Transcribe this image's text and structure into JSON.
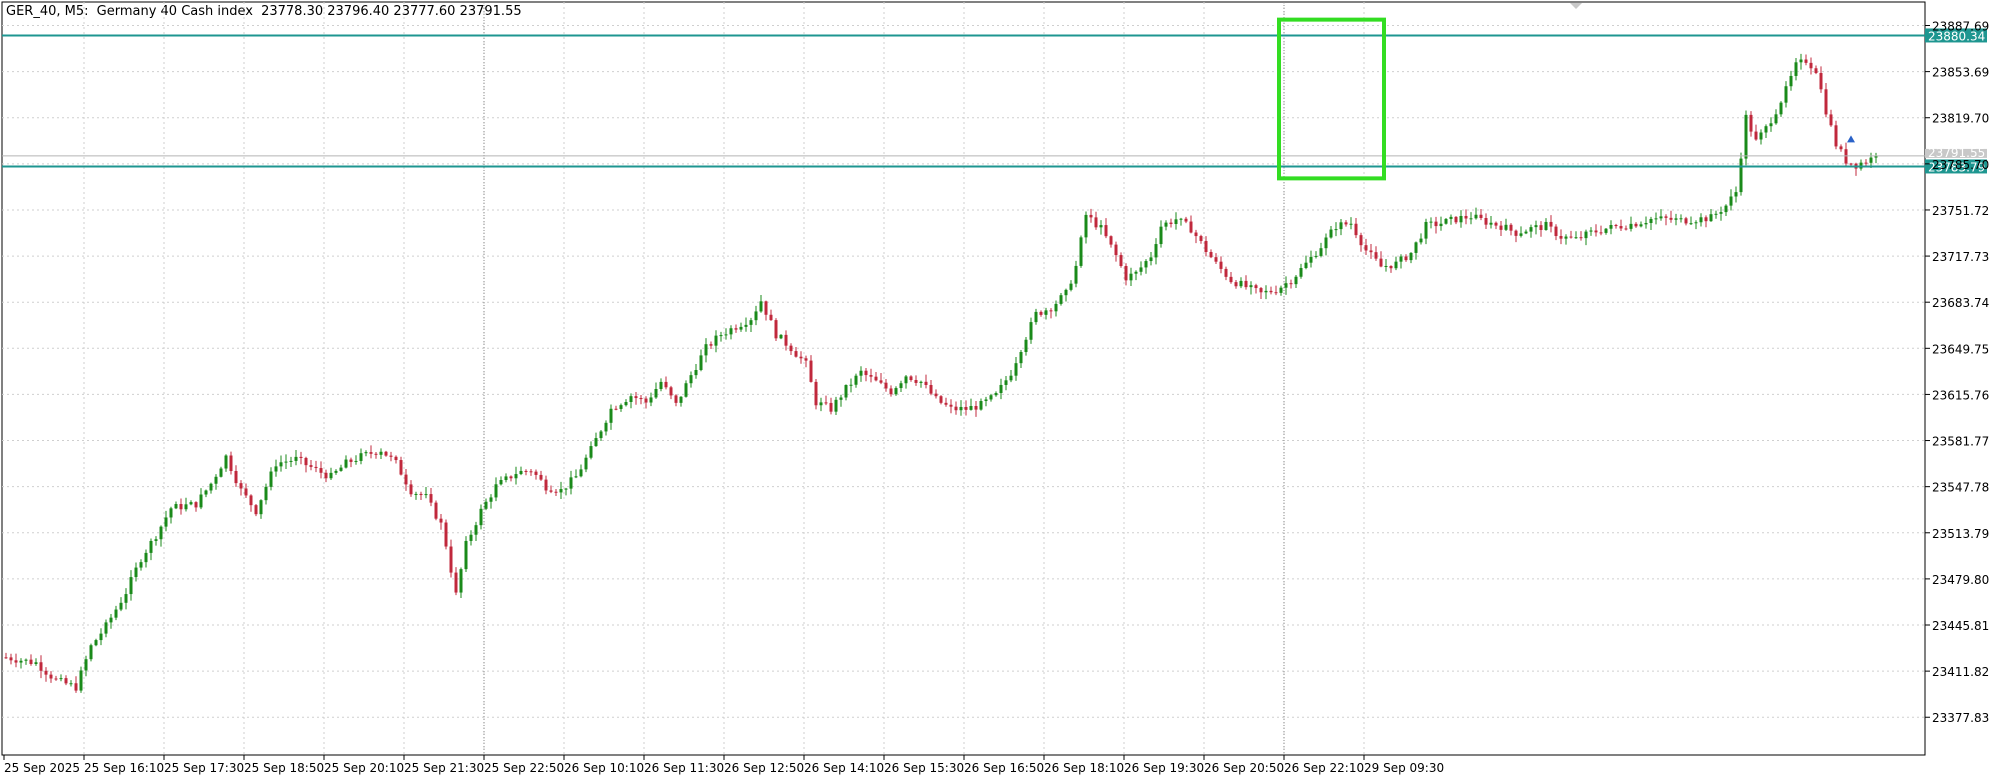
{
  "header": {
    "symbol": "GER_40, M5:",
    "instrument": "Germany 40 Cash index",
    "ohlc": "23778.30 23796.40 23777.60 23791.55"
  },
  "colors": {
    "bull": "#1a8a1a",
    "bear": "#c0283c",
    "level_line": "#1e9690",
    "highlight_box": "#33dd22",
    "grid": "#cfcfcf"
  },
  "chart_data": {
    "type": "candlestick",
    "ylim": [
      23350,
      23905
    ],
    "y_ticks": [
      23887.69,
      23853.69,
      23819.7,
      23785.7,
      23751.72,
      23717.73,
      23683.74,
      23649.75,
      23615.76,
      23581.77,
      23547.78,
      23513.79,
      23479.8,
      23445.81,
      23411.82,
      23377.83
    ],
    "y_tick_labels": [
      "23887.69",
      "23853.69",
      "23819.70",
      "23785.70",
      "23751.72",
      "23717.73",
      "23683.74",
      "23649.75",
      "23615.76",
      "23581.77",
      "23547.78",
      "23513.79",
      "23479.80",
      "23445.81",
      "23411.82",
      "23377.83"
    ],
    "x_tick_labels": [
      "25 Sep 2025",
      "25 Sep 16:10",
      "25 Sep 17:30",
      "25 Sep 18:50",
      "25 Sep 20:10",
      "25 Sep 21:30",
      "25 Sep 22:50",
      "26 Sep 10:10",
      "26 Sep 11:30",
      "26 Sep 12:50",
      "26 Sep 14:10",
      "26 Sep 15:30",
      "26 Sep 16:50",
      "26 Sep 18:10",
      "26 Sep 19:30",
      "26 Sep 20:50",
      "26 Sep 22:10",
      "29 Sep 09:30"
    ],
    "horizontal_levels": [
      {
        "value": 23880.34,
        "label": "23880.34"
      },
      {
        "value": 23783.79,
        "label": "23783.79"
      }
    ],
    "current_price": {
      "value": 23791.55,
      "label": "23791.55"
    },
    "highlight_box": {
      "x_from": "26 Sep 22:10",
      "x_to": "29 Sep 09:30",
      "y_range": [
        23775,
        23892
      ]
    },
    "price_path": [
      [
        0,
        23422
      ],
      [
        6,
        23418
      ],
      [
        10,
        23405
      ],
      [
        14,
        23400
      ],
      [
        17,
        23430
      ],
      [
        20,
        23445
      ],
      [
        24,
        23470
      ],
      [
        27,
        23495
      ],
      [
        30,
        23512
      ],
      [
        33,
        23532
      ],
      [
        38,
        23535
      ],
      [
        41,
        23550
      ],
      [
        44,
        23570
      ],
      [
        47,
        23545
      ],
      [
        50,
        23530
      ],
      [
        52,
        23548
      ],
      [
        54,
        23565
      ],
      [
        58,
        23568
      ],
      [
        62,
        23560
      ],
      [
        65,
        23555
      ],
      [
        68,
        23565
      ],
      [
        71,
        23570
      ],
      [
        75,
        23575
      ],
      [
        78,
        23565
      ],
      [
        81,
        23545
      ],
      [
        84,
        23540
      ],
      [
        87,
        23520
      ],
      [
        88,
        23505
      ],
      [
        90,
        23468
      ],
      [
        92,
        23505
      ],
      [
        95,
        23530
      ],
      [
        98,
        23548
      ],
      [
        102,
        23558
      ],
      [
        105,
        23560
      ],
      [
        108,
        23548
      ],
      [
        111,
        23545
      ],
      [
        114,
        23555
      ],
      [
        117,
        23575
      ],
      [
        121,
        23605
      ],
      [
        125,
        23615
      ],
      [
        128,
        23610
      ],
      [
        131,
        23625
      ],
      [
        134,
        23608
      ],
      [
        137,
        23630
      ],
      [
        140,
        23650
      ],
      [
        143,
        23660
      ],
      [
        146,
        23666
      ],
      [
        149,
        23672
      ],
      [
        151,
        23685
      ],
      [
        154,
        23660
      ],
      [
        157,
        23650
      ],
      [
        160,
        23638
      ],
      [
        162,
        23610
      ],
      [
        165,
        23605
      ],
      [
        168,
        23620
      ],
      [
        171,
        23632
      ],
      [
        174,
        23625
      ],
      [
        177,
        23618
      ],
      [
        180,
        23630
      ],
      [
        183,
        23625
      ],
      [
        186,
        23612
      ],
      [
        189,
        23605
      ],
      [
        192,
        23605
      ],
      [
        195,
        23608
      ],
      [
        198,
        23615
      ],
      [
        201,
        23632
      ],
      [
        203,
        23650
      ],
      [
        206,
        23675
      ],
      [
        209,
        23680
      ],
      [
        212,
        23690
      ],
      [
        214,
        23710
      ],
      [
        216,
        23748
      ],
      [
        219,
        23738
      ],
      [
        222,
        23718
      ],
      [
        224,
        23702
      ],
      [
        226,
        23705
      ],
      [
        229,
        23718
      ],
      [
        231,
        23740
      ],
      [
        234,
        23745
      ],
      [
        237,
        23738
      ],
      [
        240,
        23722
      ],
      [
        242,
        23712
      ],
      [
        245,
        23700
      ],
      [
        248,
        23695
      ],
      [
        251,
        23690
      ],
      [
        254,
        23693
      ],
      [
        257,
        23700
      ],
      [
        260,
        23712
      ],
      [
        263,
        23725
      ],
      [
        266,
        23740
      ],
      [
        269,
        23742
      ],
      [
        272,
        23722
      ],
      [
        275,
        23710
      ],
      [
        278,
        23712
      ],
      [
        281,
        23720
      ],
      [
        284,
        23740
      ],
      [
        287,
        23742
      ],
      [
        290,
        23745
      ],
      [
        293,
        23747
      ],
      [
        296,
        23743
      ],
      [
        299,
        23740
      ],
      [
        302,
        23735
      ],
      [
        305,
        23738
      ],
      [
        308,
        23740
      ],
      [
        311,
        23732
      ],
      [
        314,
        23730
      ],
      [
        317,
        23735
      ],
      [
        320,
        23738
      ],
      [
        323,
        23740
      ],
      [
        326,
        23742
      ],
      [
        329,
        23745
      ],
      [
        332,
        23745
      ],
      [
        335,
        23744
      ],
      [
        338,
        23745
      ],
      [
        341,
        23746
      ],
      [
        344,
        23755
      ],
      [
        346,
        23765
      ],
      [
        348,
        23820
      ],
      [
        350,
        23802
      ],
      [
        352,
        23812
      ],
      [
        354,
        23825
      ],
      [
        356,
        23840
      ],
      [
        358,
        23858
      ],
      [
        360,
        23862
      ],
      [
        362,
        23855
      ],
      [
        364,
        23825
      ],
      [
        366,
        23800
      ],
      [
        368,
        23788
      ],
      [
        370,
        23785
      ],
      [
        372,
        23788
      ],
      [
        374,
        23791
      ]
    ]
  }
}
